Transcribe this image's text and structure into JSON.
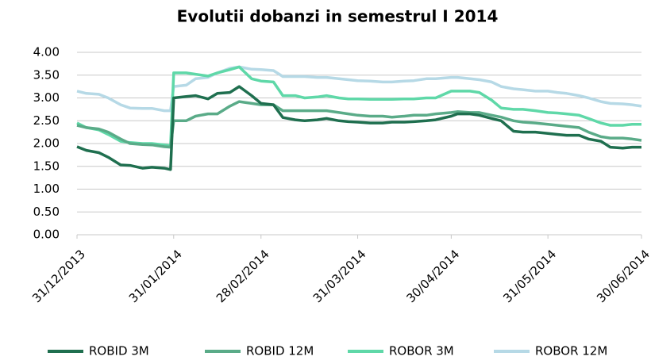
{
  "chart_data": {
    "type": "line",
    "title": "Evolutii dobanzi  in semestrul I 2014",
    "x": [
      "31/12/2013",
      "03/01/2014",
      "07/01/2014",
      "10/01/2014",
      "14/01/2014",
      "17/01/2014",
      "21/01/2014",
      "24/01/2014",
      "28/01/2014",
      "30/01/2014",
      "31/01/2014",
      "04/02/2014",
      "07/02/2014",
      "11/02/2014",
      "14/02/2014",
      "18/02/2014",
      "21/02/2014",
      "25/02/2014",
      "28/02/2014",
      "04/03/2014",
      "07/03/2014",
      "11/03/2014",
      "14/03/2014",
      "18/03/2014",
      "21/03/2014",
      "25/03/2014",
      "28/03/2014",
      "31/03/2014",
      "04/04/2014",
      "08/04/2014",
      "11/04/2014",
      "15/04/2014",
      "18/04/2014",
      "22/04/2014",
      "25/04/2014",
      "30/04/2014",
      "02/05/2014",
      "06/05/2014",
      "09/05/2014",
      "13/05/2014",
      "16/05/2014",
      "20/05/2014",
      "23/05/2014",
      "27/05/2014",
      "31/05/2014",
      "03/06/2014",
      "06/06/2014",
      "10/06/2014",
      "13/06/2014",
      "17/06/2014",
      "20/06/2014",
      "24/06/2014",
      "27/06/2014",
      "30/06/2014"
    ],
    "series": [
      {
        "name": "ROBID 3M",
        "color": "#1f6f4f",
        "values": [
          1.93,
          1.85,
          1.8,
          1.7,
          1.53,
          1.52,
          1.46,
          1.48,
          1.46,
          1.43,
          3.0,
          3.03,
          3.05,
          2.98,
          3.1,
          3.12,
          3.25,
          3.05,
          2.88,
          2.85,
          2.57,
          2.52,
          2.5,
          2.52,
          2.55,
          2.5,
          2.48,
          2.47,
          2.45,
          2.45,
          2.47,
          2.47,
          2.48,
          2.5,
          2.52,
          2.6,
          2.65,
          2.65,
          2.62,
          2.55,
          2.5,
          2.27,
          2.25,
          2.25,
          2.22,
          2.2,
          2.18,
          2.18,
          2.1,
          2.05,
          1.92,
          1.9,
          1.92,
          1.92
        ]
      },
      {
        "name": "ROBID 12M",
        "color": "#5aab88",
        "values": [
          2.4,
          2.35,
          2.32,
          2.25,
          2.1,
          2.0,
          1.98,
          1.97,
          1.93,
          1.92,
          2.5,
          2.5,
          2.6,
          2.65,
          2.65,
          2.82,
          2.92,
          2.88,
          2.85,
          2.85,
          2.72,
          2.72,
          2.72,
          2.72,
          2.72,
          2.68,
          2.65,
          2.62,
          2.6,
          2.6,
          2.58,
          2.6,
          2.62,
          2.62,
          2.65,
          2.68,
          2.7,
          2.68,
          2.68,
          2.62,
          2.58,
          2.5,
          2.47,
          2.45,
          2.42,
          2.4,
          2.38,
          2.35,
          2.25,
          2.15,
          2.12,
          2.12,
          2.1,
          2.07
        ]
      },
      {
        "name": "ROBOR 3M",
        "color": "#5fd8a8",
        "values": [
          2.45,
          2.35,
          2.3,
          2.2,
          2.05,
          2.02,
          2.0,
          2.0,
          1.97,
          1.95,
          3.55,
          3.55,
          3.52,
          3.48,
          3.55,
          3.62,
          3.68,
          3.42,
          3.37,
          3.35,
          3.05,
          3.05,
          3.0,
          3.02,
          3.05,
          3.0,
          2.98,
          2.98,
          2.97,
          2.97,
          2.97,
          2.98,
          2.98,
          3.0,
          3.0,
          3.15,
          3.15,
          3.15,
          3.12,
          2.95,
          2.78,
          2.75,
          2.75,
          2.72,
          2.68,
          2.67,
          2.65,
          2.62,
          2.55,
          2.45,
          2.4,
          2.4,
          2.42,
          2.42
        ]
      },
      {
        "name": "ROBOR 12M",
        "color": "#b6d9e6",
        "values": [
          3.15,
          3.1,
          3.08,
          3.0,
          2.85,
          2.78,
          2.77,
          2.77,
          2.72,
          2.72,
          3.25,
          3.28,
          3.42,
          3.45,
          3.55,
          3.65,
          3.68,
          3.63,
          3.62,
          3.6,
          3.47,
          3.47,
          3.47,
          3.45,
          3.45,
          3.42,
          3.4,
          3.38,
          3.37,
          3.35,
          3.35,
          3.37,
          3.38,
          3.42,
          3.42,
          3.45,
          3.45,
          3.42,
          3.4,
          3.35,
          3.25,
          3.2,
          3.18,
          3.15,
          3.15,
          3.12,
          3.1,
          3.05,
          3.0,
          2.92,
          2.88,
          2.87,
          2.85,
          2.82
        ]
      }
    ],
    "xlim": [
      "31/12/2013",
      "30/06/2014"
    ],
    "xticks": [
      "31/12/2013",
      "31/01/2014",
      "28/02/2014",
      "31/03/2014",
      "30/04/2014",
      "31/05/2014",
      "30/06/2014"
    ],
    "ylim": [
      0,
      4
    ],
    "yticks": [
      {
        "value": 0,
        "label": "0.00"
      },
      {
        "value": 0.5,
        "label": "0.50"
      },
      {
        "value": 1,
        "label": "1.00"
      },
      {
        "value": 1.5,
        "label": "1.50"
      },
      {
        "value": 2,
        "label": "2.00"
      },
      {
        "value": 2.5,
        "label": "2.50"
      },
      {
        "value": 3,
        "label": "3.00"
      },
      {
        "value": 3.5,
        "label": "3.50"
      },
      {
        "value": 4,
        "label": "4.00"
      }
    ],
    "grid": true,
    "legend": "bottom"
  }
}
